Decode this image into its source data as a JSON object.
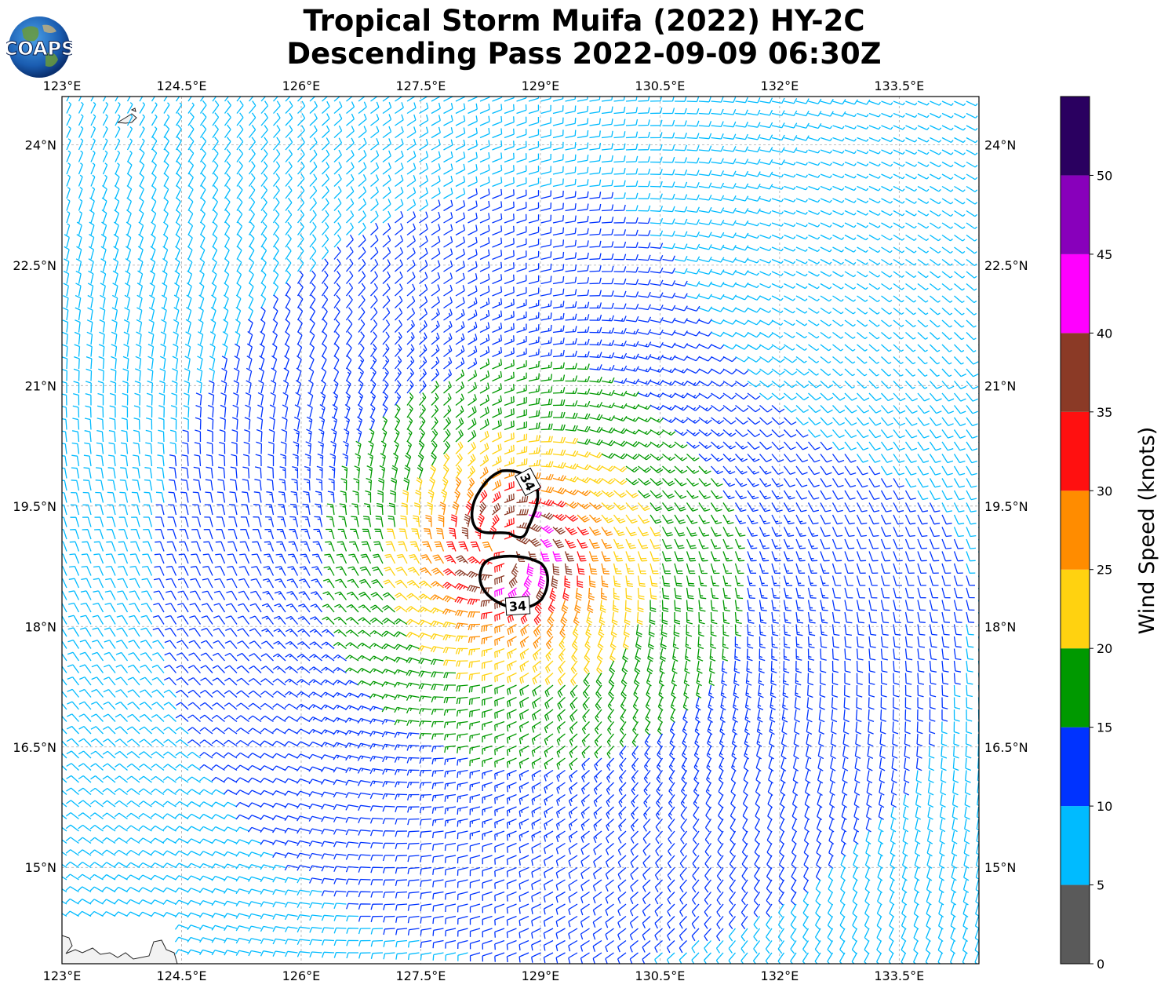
{
  "title": {
    "line1": "Tropical Storm Muifa (2022) HY-2C",
    "line2": "Descending Pass 2022-09-09 06:30Z"
  },
  "logo": {
    "text": "COAPS",
    "icon": "coaps-globe-logo"
  },
  "map": {
    "lon_range": [
      123.0,
      134.5
    ],
    "lat_range": [
      13.8,
      24.6
    ],
    "x_ticks": [
      "123°E",
      "124.5°E",
      "126°E",
      "127.5°E",
      "129°E",
      "130.5°E",
      "132°E",
      "133.5°E"
    ],
    "x_tick_values": [
      123.0,
      124.5,
      126.0,
      127.5,
      129.0,
      130.5,
      132.0,
      133.5
    ],
    "y_ticks": [
      "24°N",
      "22.5°N",
      "21°N",
      "19.5°N",
      "18°N",
      "16.5°N",
      "15°N"
    ],
    "y_tick_values": [
      24.0,
      22.5,
      21.0,
      19.5,
      18.0,
      16.5,
      15.0
    ],
    "grid": true,
    "storm_center": [
      128.55,
      18.95
    ],
    "contours": [
      {
        "label": "34",
        "level_knots": 34
      },
      {
        "label": "34",
        "level_knots": 34
      }
    ],
    "barb_spacing_deg": 0.25
  },
  "colorbar": {
    "label": "Wind Speed (knots)",
    "ticks": [
      "0",
      "5",
      "10",
      "15",
      "20",
      "25",
      "30",
      "35",
      "40",
      "45",
      "50"
    ],
    "bins": [
      {
        "min": 0,
        "max": 5,
        "color": "#5a5a5a"
      },
      {
        "min": 5,
        "max": 10,
        "color": "#00bbff"
      },
      {
        "min": 10,
        "max": 15,
        "color": "#0033ff"
      },
      {
        "min": 15,
        "max": 20,
        "color": "#009900"
      },
      {
        "min": 20,
        "max": 25,
        "color": "#ffd210"
      },
      {
        "min": 25,
        "max": 30,
        "color": "#ff8c00"
      },
      {
        "min": 30,
        "max": 35,
        "color": "#ff1010"
      },
      {
        "min": 35,
        "max": 40,
        "color": "#8b3a26"
      },
      {
        "min": 40,
        "max": 45,
        "color": "#ff00ff"
      },
      {
        "min": 45,
        "max": 50,
        "color": "#8800bb"
      },
      {
        "min": 50,
        "max": 55,
        "color": "#2a0060"
      }
    ]
  }
}
